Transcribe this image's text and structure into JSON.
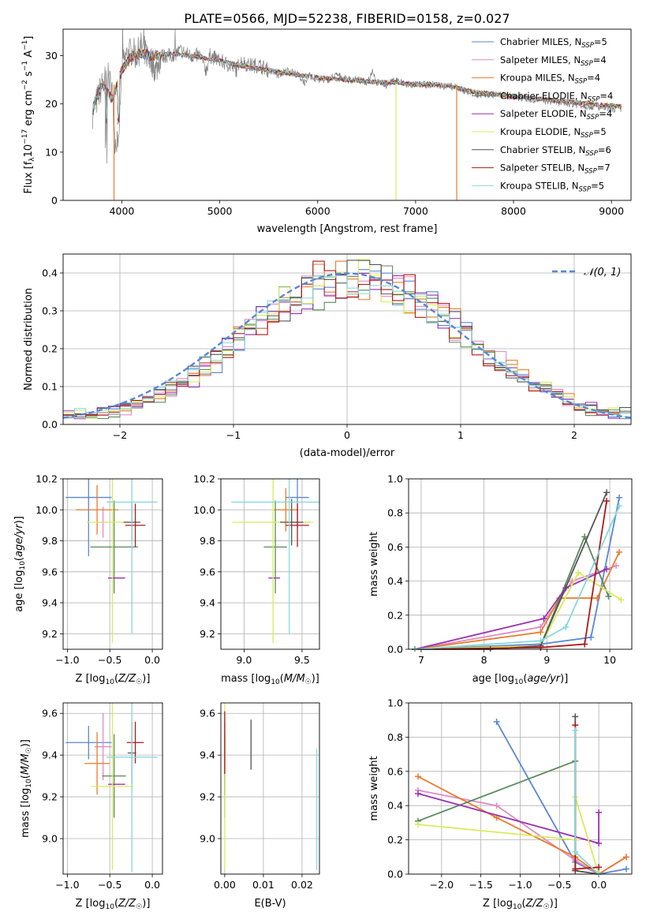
{
  "figure": {
    "title": "PLATE=0566, MJD=52238, FIBERID=0158, z=0.027"
  },
  "colors": {
    "Chabrier MILES": "#5b86d6",
    "Salpeter MILES": "#e08ac4",
    "Kroupa MILES": "#e87d2c",
    "Chabrier ELODIE": "#5a8a5a",
    "Salpeter ELODIE": "#9a30b0",
    "Kroupa ELODIE": "#d8ec5a",
    "Chabrier STELIB": "#555555",
    "Salpeter STELIB": "#b01818",
    "Kroupa STELIB": "#88d8dc",
    "normal": "#5b86d6",
    "grid": "#b0b0b0"
  },
  "chart_data": [
    {
      "id": "spectrum",
      "type": "line",
      "title": "PLATE=0566, MJD=52238, FIBERID=0158, z=0.027",
      "xlabel": "wavelength [Angstrom, rest frame]",
      "ylabel": "Flux [f_λ 10^-17 erg cm^-2 s^-1 A^-1]",
      "xlim": [
        3400,
        9200
      ],
      "ylim": [
        0,
        35.5
      ],
      "xticks": [
        4000,
        5000,
        6000,
        7000,
        8000,
        9000
      ],
      "yticks": [
        0,
        10,
        20,
        30
      ],
      "grid": false,
      "legend_position": "top-right",
      "legend": [
        {
          "main": "Chabrier MILES, N",
          "sub": "SSP",
          "tail": "=5"
        },
        {
          "main": "Salpeter MILES, N",
          "sub": "SSP",
          "tail": "=4"
        },
        {
          "main": "Kroupa MILES, N",
          "sub": "SSP",
          "tail": "=4"
        },
        {
          "main": "Chabrier ELODIE, N",
          "sub": "SSP",
          "tail": "=4"
        },
        {
          "main": "Salpeter ELODIE, N",
          "sub": "SSP",
          "tail": "=4"
        },
        {
          "main": "Kroupa ELODIE, N",
          "sub": "SSP",
          "tail": "=5"
        },
        {
          "main": "Chabrier STELIB, N",
          "sub": "SSP",
          "tail": "=6"
        },
        {
          "main": "Salpeter STELIB, N",
          "sub": "SSP",
          "tail": "=7"
        },
        {
          "main": "Kroupa STELIB, N",
          "sub": "SSP",
          "tail": "=5"
        }
      ],
      "data_series": {
        "name": "data",
        "x": [
          3700,
          3750,
          3800,
          3850,
          3900,
          3930,
          3970,
          4000,
          4050,
          4100,
          4150,
          4200,
          4300,
          4350,
          4400,
          4500,
          4600,
          4700,
          4800,
          4861,
          4900,
          5000,
          5100,
          5175,
          5200,
          5300,
          5400,
          5500,
          5600,
          5700,
          5800,
          5890,
          5900,
          6000,
          6100,
          6200,
          6300,
          6400,
          6500,
          6563,
          6600,
          6700,
          6800,
          6900,
          7000,
          7200,
          7400,
          7600,
          7800,
          8000,
          8200,
          8400,
          8600,
          8800,
          9000,
          9100
        ],
        "y": [
          18,
          21,
          24,
          26,
          23,
          12,
          14,
          28,
          30,
          31,
          30,
          32,
          29,
          27,
          30,
          30,
          31,
          30,
          30,
          27,
          30,
          29,
          28,
          27,
          29,
          28,
          28,
          27,
          26,
          27,
          26,
          24,
          26,
          25,
          25,
          26,
          25,
          25,
          24.5,
          27,
          24.5,
          24,
          25,
          24,
          24,
          24,
          23.5,
          22,
          22,
          21.5,
          21,
          20.5,
          20,
          19.5,
          19,
          19
        ]
      },
      "model_series": {
        "name": "models",
        "x": [
          3700,
          3800,
          3900,
          4000,
          4100,
          4200,
          4300,
          4400,
          4500,
          4700,
          5000,
          5200,
          5500,
          5800,
          6000,
          6300,
          6600,
          6800,
          7000,
          7200,
          7400,
          7600,
          8000,
          8400,
          8800,
          9100
        ],
        "y": [
          19,
          24,
          21,
          27,
          30,
          30.5,
          30,
          30,
          30.5,
          30,
          29,
          28,
          27,
          26,
          25.5,
          25,
          24.5,
          24.5,
          24,
          24,
          23.5,
          22.5,
          21.5,
          20.8,
          20,
          19.5
        ]
      },
      "dropouts": [
        {
          "series": "Kroupa MILES",
          "x": 3920
        },
        {
          "series": "Kroupa ELODIE",
          "x": 6800
        },
        {
          "series": "Kroupa MILES",
          "x": 7420
        }
      ]
    },
    {
      "id": "residuals",
      "type": "histogram",
      "xlabel": "(data-model)/error",
      "ylabel": "Normed distribution",
      "xlim": [
        -2.5,
        2.5
      ],
      "ylim": [
        0,
        0.45
      ],
      "xticks": [
        -2,
        -1,
        0,
        1,
        2
      ],
      "yticks": [
        0.0,
        0.1,
        0.2,
        0.3,
        0.4
      ],
      "grid": true,
      "bin_width": 0.1,
      "bin_start": -2.5,
      "legend": [
        {
          "label": "𝒩(0, 1)",
          "style": "dashed",
          "color_key": "normal"
        }
      ]
    },
    {
      "id": "age_vs_Z",
      "type": "errorbar",
      "xlabel": "Z [log10(Z/Z☉)]",
      "ylabel": "age  [log10(age/yr)]",
      "xlim": [
        -1.05,
        0.12
      ],
      "ylim": [
        9.1,
        10.2
      ],
      "xticks": [
        -1.0,
        -0.5,
        0.0
      ],
      "yticks": [
        9.2,
        9.4,
        9.6,
        9.8,
        10.0,
        10.2
      ],
      "grid": true,
      "points": [
        {
          "series": "Chabrier MILES",
          "x": -0.75,
          "y": 10.08,
          "xerr": 0.27,
          "yerr": 0.38
        },
        {
          "series": "Salpeter MILES",
          "x": -0.58,
          "y": 9.92,
          "xerr": 0.05,
          "yerr": 0.1
        },
        {
          "series": "Kroupa MILES",
          "x": -0.65,
          "y": 10.0,
          "xerr": 0.25,
          "yerr": 0.16
        },
        {
          "series": "Chabrier ELODIE",
          "x": -0.45,
          "y": 9.76,
          "xerr": 0.28,
          "yerr": 0.3
        },
        {
          "series": "Salpeter ELODIE",
          "x": -0.42,
          "y": 9.56,
          "xerr": 0.1,
          "yerr": 0.0
        },
        {
          "series": "Kroupa ELODIE",
          "x": -0.47,
          "y": 9.92,
          "xerr": 0.3,
          "yerr": 0.78
        },
        {
          "series": "Chabrier STELIB",
          "x": -0.24,
          "y": 9.92,
          "xerr": 0.1,
          "yerr": 0.12
        },
        {
          "series": "Salpeter STELIB",
          "x": -0.2,
          "y": 9.9,
          "xerr": 0.12,
          "yerr": 0.14
        },
        {
          "series": "Kroupa STELIB",
          "x": -0.24,
          "y": 10.05,
          "xerr": 0.3,
          "yerr": 0.85
        }
      ]
    },
    {
      "id": "age_vs_mass",
      "type": "errorbar",
      "xlabel": "mass [log10(M/M☉)]",
      "ylabel": "",
      "xlim": [
        8.8,
        9.65
      ],
      "ylim": [
        9.1,
        10.2
      ],
      "xticks": [
        9.0,
        9.5
      ],
      "yticks": [
        9.2,
        9.4,
        9.6,
        9.8,
        10.0,
        10.2
      ],
      "grid": true,
      "points": [
        {
          "series": "Chabrier MILES",
          "x": 9.46,
          "y": 10.08,
          "xerr": 0.1,
          "yerr": 0.2
        },
        {
          "series": "Salpeter MILES",
          "x": 9.45,
          "y": 9.92,
          "xerr": 0.12,
          "yerr": 0.0
        },
        {
          "series": "Kroupa MILES",
          "x": 9.36,
          "y": 10.0,
          "xerr": 0.1,
          "yerr": 0.14
        },
        {
          "series": "Chabrier ELODIE",
          "x": 9.27,
          "y": 9.76,
          "xerr": 0.1,
          "yerr": 0.3
        },
        {
          "series": "Salpeter ELODIE",
          "x": 9.26,
          "y": 9.56,
          "xerr": 0.05,
          "yerr": 0.0
        },
        {
          "series": "Kroupa ELODIE",
          "x": 9.25,
          "y": 9.92,
          "xerr": 0.35,
          "yerr": 0.78
        },
        {
          "series": "Chabrier STELIB",
          "x": 9.41,
          "y": 9.92,
          "xerr": 0.1,
          "yerr": 0.15
        },
        {
          "series": "Salpeter STELIB",
          "x": 9.46,
          "y": 9.9,
          "xerr": 0.1,
          "yerr": 0.14
        },
        {
          "series": "Kroupa STELIB",
          "x": 9.39,
          "y": 10.05,
          "xerr": 0.5,
          "yerr": 0.85
        }
      ]
    },
    {
      "id": "weight_vs_age",
      "type": "line",
      "xlabel": "age  [log10(age/yr)]",
      "ylabel": "mass weight",
      "xlim": [
        6.8,
        10.35
      ],
      "ylim": [
        0,
        1.0
      ],
      "xticks": [
        7,
        8,
        9,
        10
      ],
      "yticks": [
        0.0,
        0.2,
        0.4,
        0.6,
        0.8,
        1.0
      ],
      "grid": true,
      "series": [
        {
          "name": "Chabrier MILES",
          "x": [
            6.9,
            8.9,
            9.7,
            10.15
          ],
          "y": [
            0.0,
            0.03,
            0.07,
            0.89
          ]
        },
        {
          "name": "Salpeter MILES",
          "x": [
            6.9,
            8.9,
            9.4,
            10.1
          ],
          "y": [
            0.0,
            0.13,
            0.4,
            0.49
          ]
        },
        {
          "name": "Kroupa MILES",
          "x": [
            6.9,
            8.9,
            9.2,
            9.8,
            10.15
          ],
          "y": [
            0.0,
            0.1,
            0.3,
            0.3,
            0.57
          ]
        },
        {
          "name": "Chabrier ELODIE",
          "x": [
            6.9,
            8.9,
            9.6,
            9.98
          ],
          "y": [
            0.0,
            0.02,
            0.66,
            0.31
          ]
        },
        {
          "name": "Salpeter ELODIE",
          "x": [
            6.9,
            8.95,
            9.3,
            9.95
          ],
          "y": [
            0.0,
            0.18,
            0.36,
            0.47
          ]
        },
        {
          "name": "Kroupa ELODIE",
          "x": [
            6.9,
            8.9,
            9.5,
            10.18
          ],
          "y": [
            0.0,
            0.02,
            0.45,
            0.29
          ]
        },
        {
          "name": "Chabrier STELIB",
          "x": [
            6.9,
            8.1,
            8.9,
            9.95
          ],
          "y": [
            0.0,
            0.0,
            0.02,
            0.92
          ]
        },
        {
          "name": "Salpeter STELIB",
          "x": [
            6.9,
            8.9,
            9.6,
            9.95
          ],
          "y": [
            0.0,
            0.01,
            0.03,
            0.87
          ]
        },
        {
          "name": "Kroupa STELIB",
          "x": [
            6.9,
            8.9,
            9.3,
            10.15
          ],
          "y": [
            0.0,
            0.05,
            0.13,
            0.84
          ]
        }
      ]
    },
    {
      "id": "mass_vs_Z",
      "type": "errorbar",
      "xlabel": "Z [log10(Z/Z☉)]",
      "ylabel": "mass [log10(M/M☉)]",
      "xlim": [
        -1.05,
        0.12
      ],
      "ylim": [
        8.83,
        9.65
      ],
      "xticks": [
        -1.0,
        -0.5,
        0.0
      ],
      "yticks": [
        9.0,
        9.2,
        9.4,
        9.6
      ],
      "grid": true,
      "points": [
        {
          "series": "Chabrier MILES",
          "x": -0.75,
          "y": 9.46,
          "xerr": 0.27,
          "yerr": 0.08
        },
        {
          "series": "Salpeter MILES",
          "x": -0.58,
          "y": 9.44,
          "xerr": 0.1,
          "yerr": 0.16
        },
        {
          "series": "Kroupa MILES",
          "x": -0.65,
          "y": 9.36,
          "xerr": 0.15,
          "yerr": 0.15
        },
        {
          "series": "Chabrier ELODIE",
          "x": -0.45,
          "y": 9.3,
          "xerr": 0.14,
          "yerr": 0.2
        },
        {
          "series": "Salpeter ELODIE",
          "x": -0.42,
          "y": 9.26,
          "xerr": 0.1,
          "yerr": 0.0
        },
        {
          "series": "Kroupa ELODIE",
          "x": -0.47,
          "y": 9.25,
          "xerr": 0.25,
          "yerr": 0.4
        },
        {
          "series": "Chabrier STELIB",
          "x": -0.24,
          "y": 9.41,
          "xerr": 0.05,
          "yerr": 0.15
        },
        {
          "series": "Salpeter STELIB",
          "x": -0.2,
          "y": 9.46,
          "xerr": 0.1,
          "yerr": 0.1
        },
        {
          "series": "Kroupa STELIB",
          "x": -0.24,
          "y": 9.39,
          "xerr": 0.3,
          "yerr": 0.55
        }
      ]
    },
    {
      "id": "mass_vs_ebv",
      "type": "errorbar",
      "xlabel": "E(B-V)",
      "ylabel": "",
      "xlim": [
        -0.001,
        0.0245
      ],
      "ylim": [
        8.83,
        9.65
      ],
      "xticks": [
        0.0,
        0.01,
        0.02
      ],
      "yticks": [
        9.0,
        9.2,
        9.4,
        9.6
      ],
      "grid": true,
      "points": [
        {
          "series": "Chabrier MILES",
          "x": 0.0,
          "y": 9.46,
          "xerr": 0.0,
          "yerr": 0.1
        },
        {
          "series": "Salpeter MILES",
          "x": 0.0,
          "y": 9.44,
          "xerr": 0.0,
          "yerr": 0.16
        },
        {
          "series": "Kroupa MILES",
          "x": 0.0,
          "y": 9.36,
          "xerr": 0.0,
          "yerr": 0.15
        },
        {
          "series": "Chabrier ELODIE",
          "x": 0.0,
          "y": 9.3,
          "xerr": 0.0,
          "yerr": 0.2
        },
        {
          "series": "Salpeter ELODIE",
          "x": 0.0,
          "y": 9.26,
          "xerr": 0.0,
          "yerr": 0.05
        },
        {
          "series": "Kroupa ELODIE",
          "x": 0.0,
          "y": 9.25,
          "xerr": 0.0,
          "yerr": 0.4
        },
        {
          "series": "Chabrier STELIB",
          "x": 0.0068,
          "y": 9.45,
          "xerr": 0.0,
          "yerr": 0.12
        },
        {
          "series": "Salpeter STELIB",
          "x": 0.0,
          "y": 9.46,
          "xerr": 0.0,
          "yerr": 0.15
        },
        {
          "series": "Kroupa STELIB",
          "x": 0.0238,
          "y": 9.14,
          "xerr": 0.0,
          "yerr": 0.29
        }
      ]
    },
    {
      "id": "weight_vs_Z",
      "type": "line",
      "xlabel": "Z [log10(Z/Z☉)]",
      "ylabel": "mass weight",
      "xlim": [
        -2.42,
        0.42
      ],
      "ylim": [
        0,
        1.0
      ],
      "xticks": [
        -2.0,
        -1.5,
        -1.0,
        -0.5,
        0.0
      ],
      "yticks": [
        0.0,
        0.2,
        0.4,
        0.6,
        0.8,
        1.0
      ],
      "grid": true,
      "series": [
        {
          "name": "Chabrier MILES",
          "x": [
            -1.3,
            -0.3,
            0.0,
            0.35
          ],
          "y": [
            0.89,
            0.07,
            0.0,
            0.03
          ]
        },
        {
          "name": "Salpeter MILES",
          "x": [
            -2.3,
            -1.3,
            -0.3,
            0.0,
            0.35
          ],
          "y": [
            0.49,
            0.4,
            0.08,
            0.0,
            0.1
          ]
        },
        {
          "name": "Kroupa MILES",
          "x": [
            -2.3,
            -1.3,
            -0.3,
            0.0,
            0.35
          ],
          "y": [
            0.57,
            0.33,
            0.1,
            0.0,
            0.1
          ]
        },
        {
          "name": "Chabrier ELODIE",
          "x": [
            -2.3,
            -0.3,
            -0.3
          ],
          "y": [
            0.31,
            0.66,
            0.02
          ]
        },
        {
          "name": "Salpeter ELODIE",
          "x": [
            -2.3,
            0.0,
            0.0
          ],
          "y": [
            0.47,
            0.18,
            0.36
          ]
        },
        {
          "name": "Kroupa ELODIE",
          "x": [
            -2.3,
            -0.3,
            -0.3,
            0.0
          ],
          "y": [
            0.29,
            0.2,
            0.45,
            0.0
          ]
        },
        {
          "name": "Chabrier STELIB",
          "x": [
            -0.3,
            -0.3,
            0.0
          ],
          "y": [
            0.92,
            0.02,
            0.0
          ]
        },
        {
          "name": "Salpeter STELIB",
          "x": [
            -0.3,
            -0.3,
            0.0
          ],
          "y": [
            0.87,
            0.03,
            0.04
          ]
        },
        {
          "name": "Kroupa STELIB",
          "x": [
            -0.3,
            -0.3,
            0.0
          ],
          "y": [
            0.84,
            0.13,
            0.0
          ]
        }
      ]
    }
  ]
}
